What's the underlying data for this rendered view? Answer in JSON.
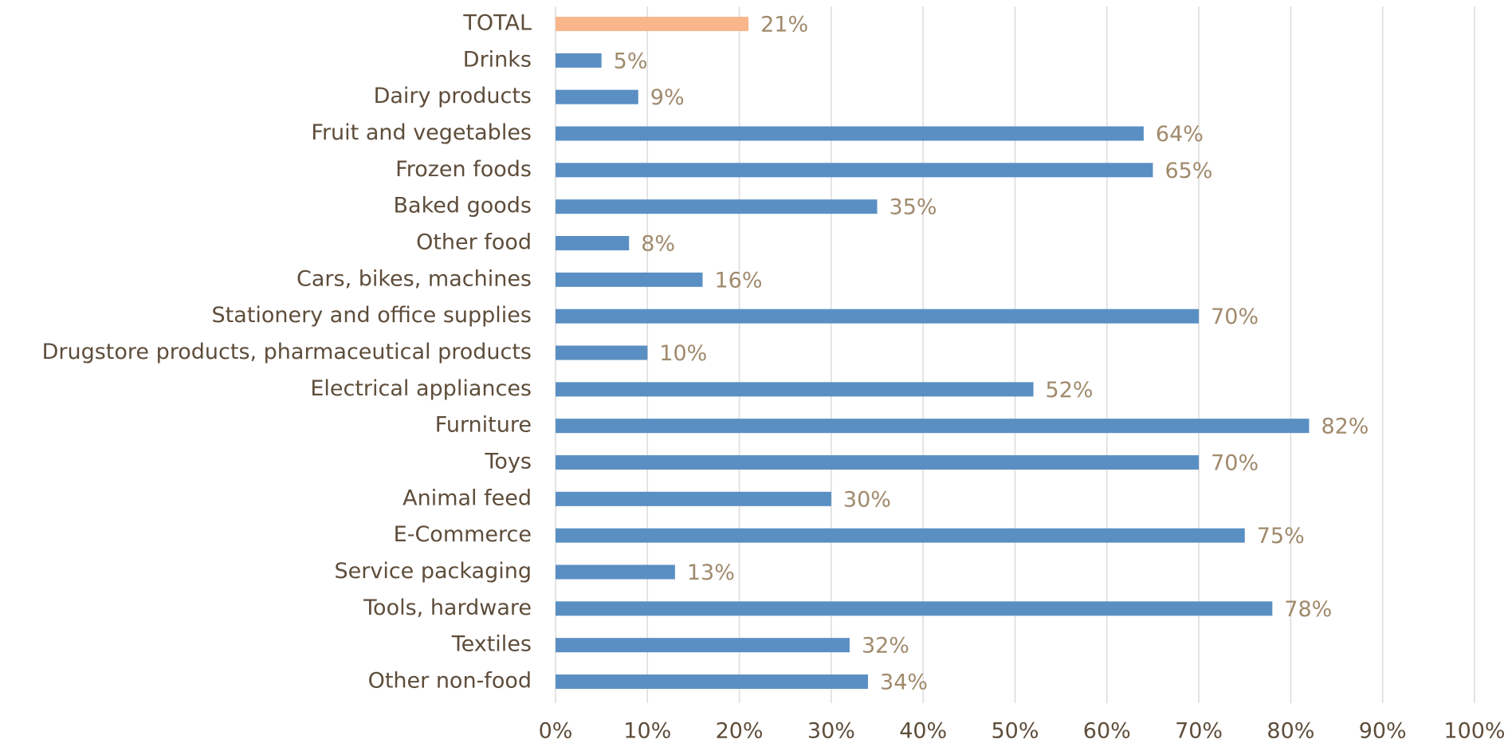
{
  "chart_data": {
    "type": "bar",
    "orientation": "horizontal",
    "categories": [
      "TOTAL",
      "Drinks",
      "Dairy products",
      "Fruit and vegetables",
      "Frozen foods",
      "Baked goods",
      "Other food",
      "Cars, bikes, machines",
      "Stationery and office supplies",
      "Drugstore products, pharmaceutical products",
      "Electrical appliances",
      "Furniture",
      "Toys",
      "Animal feed",
      "E-Commerce",
      "Service packaging",
      "Tools, hardware",
      "Textiles",
      "Other non-food"
    ],
    "values": [
      21,
      5,
      9,
      64,
      65,
      35,
      8,
      16,
      70,
      10,
      52,
      82,
      70,
      30,
      75,
      13,
      78,
      32,
      34
    ],
    "value_labels": [
      "21%",
      "5%",
      "9%",
      "64%",
      "65%",
      "35%",
      "8%",
      "16%",
      "70%",
      "10%",
      "52%",
      "82%",
      "70%",
      "30%",
      "75%",
      "13%",
      "78%",
      "32%",
      "34%"
    ],
    "colors": [
      "#f9b68b",
      "#5a8fc3",
      "#5a8fc3",
      "#5a8fc3",
      "#5a8fc3",
      "#5a8fc3",
      "#5a8fc3",
      "#5a8fc3",
      "#5a8fc3",
      "#5a8fc3",
      "#5a8fc3",
      "#5a8fc3",
      "#5a8fc3",
      "#5a8fc3",
      "#5a8fc3",
      "#5a8fc3",
      "#5a8fc3",
      "#5a8fc3",
      "#5a8fc3"
    ],
    "xlim": [
      0,
      100
    ],
    "xticks": [
      {
        "value": 0,
        "label": "0%"
      },
      {
        "value": 10,
        "label": "10%"
      },
      {
        "value": 20,
        "label": "20%"
      },
      {
        "value": 30,
        "label": "30%"
      },
      {
        "value": 40,
        "label": "40%"
      },
      {
        "value": 50,
        "label": "50%"
      },
      {
        "value": 60,
        "label": "60%"
      },
      {
        "value": 70,
        "label": "70%"
      },
      {
        "value": 80,
        "label": "80%"
      },
      {
        "value": 90,
        "label": "90%"
      },
      {
        "value": 100,
        "label": "100%"
      }
    ],
    "grid": true
  }
}
